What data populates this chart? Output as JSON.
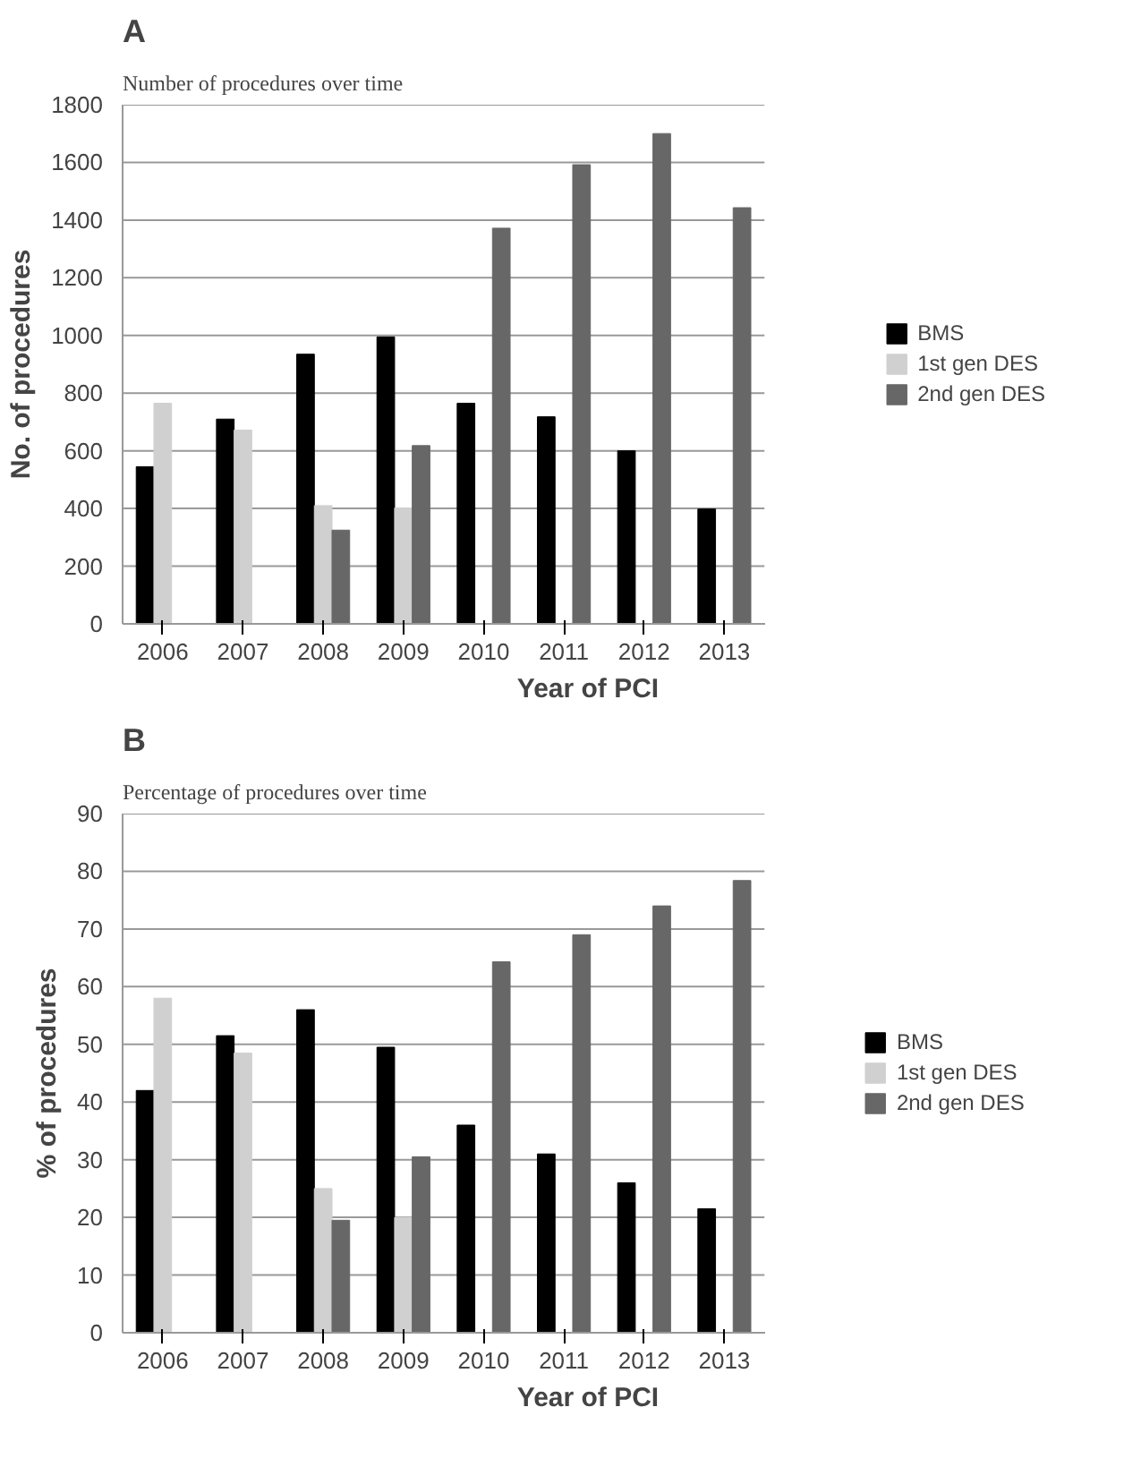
{
  "chart_data": [
    {
      "type": "bar",
      "title": "A",
      "subtitle": "Number of procedures over time",
      "xlabel": "Year of PCI",
      "ylabel": "No. of procedures",
      "categories": [
        "2006",
        "2007",
        "2008",
        "2009",
        "2010",
        "2011",
        "2012",
        "2013"
      ],
      "series": [
        {
          "name": "BMS",
          "color": "#000000",
          "values": [
            545,
            710,
            935,
            995,
            765,
            718,
            600,
            398
          ]
        },
        {
          "name": "1st gen DES",
          "color": "#d0d0d0",
          "values": [
            765,
            672,
            410,
            402,
            0,
            0,
            0,
            0
          ]
        },
        {
          "name": "2nd gen DES",
          "color": "#676767",
          "values": [
            0,
            0,
            325,
            618,
            1372,
            1592,
            1700,
            1443
          ]
        }
      ],
      "ylim": [
        0,
        1800
      ],
      "yticks": [
        0,
        200,
        400,
        600,
        800,
        1000,
        1200,
        1400,
        1600,
        1800
      ],
      "grid": "y",
      "legend": "right"
    },
    {
      "type": "bar",
      "title": "B",
      "subtitle": "Percentage of procedures over time",
      "xlabel": "Year of PCI",
      "ylabel": "% of procedures",
      "categories": [
        "2006",
        "2007",
        "2008",
        "2009",
        "2010",
        "2011",
        "2012",
        "2013"
      ],
      "series": [
        {
          "name": "BMS",
          "color": "#000000",
          "values": [
            42,
            51.5,
            56,
            49.5,
            36,
            31,
            26,
            21.5
          ]
        },
        {
          "name": "1st gen DES",
          "color": "#d0d0d0",
          "values": [
            58,
            48.5,
            25,
            20,
            0,
            0,
            0,
            0
          ]
        },
        {
          "name": "2nd gen DES",
          "color": "#676767",
          "values": [
            0,
            0,
            19.5,
            30.5,
            64.3,
            69,
            74,
            78.4
          ]
        }
      ],
      "ylim": [
        0,
        90
      ],
      "yticks": [
        0,
        10,
        20,
        30,
        40,
        50,
        60,
        70,
        80,
        90
      ],
      "grid": "y",
      "legend": "right"
    }
  ]
}
